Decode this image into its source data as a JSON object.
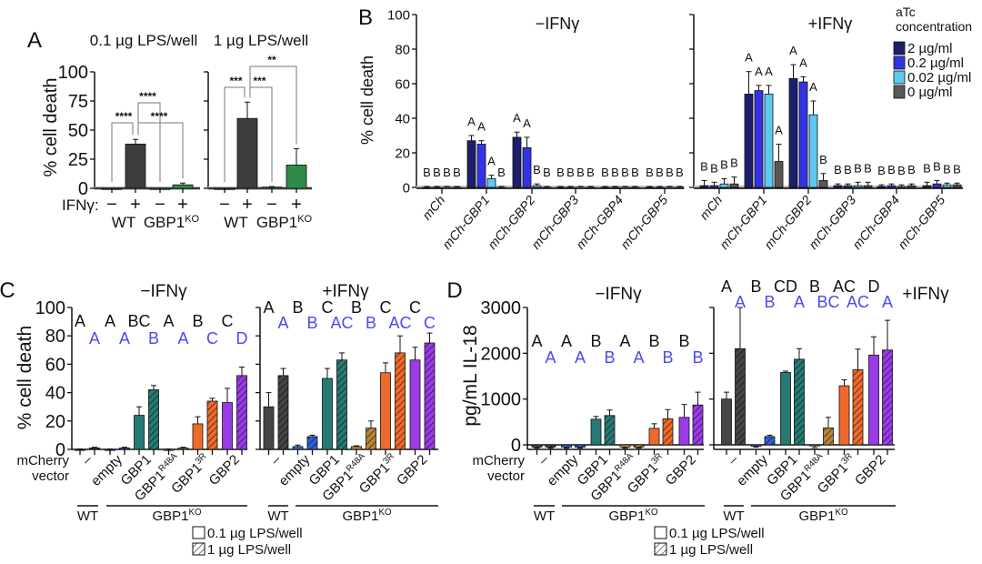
{
  "chart_data": [
    {
      "panel": "A",
      "type": "bar",
      "ylabel": "% cell death",
      "ylim": [
        0,
        100
      ],
      "yticks": [
        0,
        25,
        50,
        75,
        100
      ],
      "row_label": "IFNγ:",
      "subplots": [
        {
          "title": "0.1 µg LPS/well",
          "ifng": [
            "−",
            "+",
            "−",
            "+"
          ],
          "genotypes": [
            {
              "label": "WT",
              "sup": ""
            },
            {
              "label": "GBP1",
              "sup": "KO"
            }
          ],
          "values": [
            0,
            38,
            0,
            3
          ],
          "errors": [
            0,
            4,
            0,
            1.5
          ],
          "colors": [
            "#3d3d3d",
            "#3d3d3d",
            "#2e8b4a",
            "#2e8b4a"
          ],
          "significance": [
            {
              "from": 0,
              "to": 1,
              "label": "****"
            },
            {
              "from": 1,
              "to": 2,
              "label": "****"
            },
            {
              "from": 1,
              "to": 3,
              "label": "****"
            }
          ]
        },
        {
          "title": "1 µg LPS/well",
          "ifng": [
            "−",
            "+",
            "−",
            "+"
          ],
          "genotypes": [
            {
              "label": "WT",
              "sup": ""
            },
            {
              "label": "GBP1",
              "sup": "KO"
            }
          ],
          "values": [
            0,
            60,
            1,
            20
          ],
          "errors": [
            0,
            14,
            0.5,
            14
          ],
          "colors": [
            "#3d3d3d",
            "#3d3d3d",
            "#2e8b4a",
            "#2e8b4a"
          ],
          "significance": [
            {
              "from": 0,
              "to": 1,
              "label": "***"
            },
            {
              "from": 1,
              "to": 2,
              "label": "***"
            },
            {
              "from": 1,
              "to": 3,
              "label": "**"
            }
          ]
        }
      ]
    },
    {
      "panel": "B",
      "type": "bar",
      "ylabel": "% cell death",
      "ylim": [
        0,
        100
      ],
      "yticks": [
        0,
        20,
        40,
        60,
        80,
        100
      ],
      "categories": [
        "mCh",
        "mCh-GBP1",
        "mCh-GBP2",
        "mCh-GBP3",
        "mCh-GBP4",
        "mCh-GBP5"
      ],
      "legend": {
        "title": [
          "aTc",
          "concentration"
        ],
        "items": [
          {
            "label": "2 µg/ml",
            "color": "#1c1f6b"
          },
          {
            "label": "0.2 µg/ml",
            "color": "#3333e6"
          },
          {
            "label": "0.02 µg/ml",
            "color": "#5cc9f0"
          },
          {
            "label": "0 µg/ml",
            "color": "#585858"
          }
        ],
        "position": "top-right"
      },
      "subplots": [
        {
          "title": "−IFNγ",
          "values": [
            [
              0,
              0,
              0,
              0
            ],
            [
              27,
              25,
              5,
              0
            ],
            [
              29,
              23,
              1,
              0
            ],
            [
              0,
              0,
              0,
              0
            ],
            [
              0,
              0,
              0,
              0
            ],
            [
              0,
              0,
              0,
              0
            ]
          ],
          "errors": [
            [
              0.5,
              0.5,
              0.5,
              0.5
            ],
            [
              3,
              2,
              2,
              0.5
            ],
            [
              3,
              6,
              1,
              0.5
            ],
            [
              0.5,
              0.5,
              0.5,
              0.5
            ],
            [
              0.5,
              0.5,
              0.5,
              0.5
            ],
            [
              0.5,
              0.5,
              0.5,
              0.5
            ]
          ],
          "letters": [
            [
              "B",
              "B",
              "B",
              "B"
            ],
            [
              "A",
              "A",
              "A",
              "B"
            ],
            [
              "A",
              "A",
              "B",
              "B"
            ],
            [
              "B",
              "B",
              "B",
              "B"
            ],
            [
              "B",
              "B",
              "B",
              "B"
            ],
            [
              "B",
              "B",
              "B",
              "B"
            ]
          ]
        },
        {
          "title": "+IFNγ",
          "values": [
            [
              1,
              1,
              2,
              2
            ],
            [
              54,
              56,
              54,
              15
            ],
            [
              63,
              61,
              42,
              4
            ],
            [
              1,
              1,
              1,
              1
            ],
            [
              0.5,
              1,
              0.5,
              1
            ],
            [
              1,
              2,
              1.5,
              1.5
            ]
          ],
          "errors": [
            [
              3,
              2,
              3,
              4
            ],
            [
              13,
              3,
              5,
              10
            ],
            [
              8,
              3,
              8,
              4
            ],
            [
              1,
              1,
              2,
              2
            ],
            [
              1,
              1,
              1,
              1
            ],
            [
              2,
              2,
              1,
              1
            ]
          ],
          "letters": [
            [
              "B",
              "B",
              "B",
              "B"
            ],
            [
              "A",
              "A",
              "A",
              "A"
            ],
            [
              "A",
              "A",
              "A",
              "B"
            ],
            [
              "B",
              "B",
              "B",
              "B"
            ],
            [
              "B",
              "B",
              "B",
              "B"
            ],
            [
              "B",
              "B",
              "B",
              "B"
            ]
          ]
        }
      ]
    },
    {
      "panel": "C",
      "type": "bar",
      "ylabel": "% cell death",
      "ylim": [
        0,
        100
      ],
      "yticks": [
        0,
        20,
        40,
        60,
        80,
        100
      ],
      "xaxis_label": [
        "mCherry",
        "vector"
      ],
      "categories": [
        {
          "label": "–",
          "sup": ""
        },
        {
          "label": "empty",
          "sup": ""
        },
        {
          "label": "GBP1",
          "sup": ""
        },
        {
          "label": "GBP1",
          "sup": "R48A"
        },
        {
          "label": "GBP1",
          "sup": "3R"
        },
        {
          "label": "GBP2",
          "sup": ""
        }
      ],
      "colors": [
        "#454545",
        "#2f5fd6",
        "#267a73",
        "#b8863a",
        "#ee6a2c",
        "#9b3be8"
      ],
      "genotype_groups": [
        {
          "label": "WT",
          "sup": ""
        },
        {
          "label": "GBP1",
          "sup": "KO"
        }
      ],
      "letter_colors": [
        "#111111",
        "#4a4af0"
      ],
      "legend": [
        {
          "label": "0.1 µg LPS/well",
          "pattern": "solid"
        },
        {
          "label": "1 µg LPS/well",
          "pattern": "hatched"
        }
      ],
      "subplots": [
        {
          "title": "−IFNγ",
          "series": [
            {
              "name": "0.1 µg LPS/well",
              "values": [
                0,
                0,
                24,
                0,
                18,
                33
              ],
              "errors": [
                0.3,
                0.3,
                6,
                0.3,
                5,
                10
              ],
              "letters": [
                "A",
                "A",
                "BC",
                "A",
                "B",
                "C"
              ]
            },
            {
              "name": "1 µg LPS/well",
              "values": [
                1,
                1,
                42,
                1,
                34,
                52
              ],
              "errors": [
                0.5,
                0.5,
                3,
                0.5,
                2,
                6
              ],
              "letters": [
                "A",
                "A",
                "B",
                "A",
                "C",
                "D"
              ]
            }
          ]
        },
        {
          "title": "+IFNγ",
          "series": [
            {
              "name": "0.1 µg LPS/well",
              "values": [
                30,
                2,
                50,
                2,
                54,
                63
              ],
              "errors": [
                10,
                1,
                7,
                0.5,
                7,
                9
              ],
              "letters": [
                "A",
                "B",
                "C",
                "B",
                "C",
                "C"
              ]
            },
            {
              "name": "1 µg LPS/well",
              "values": [
                52,
                9,
                63,
                15,
                68,
                75
              ],
              "errors": [
                5,
                1,
                5,
                5,
                12,
                7
              ],
              "letters": [
                "A",
                "B",
                "AC",
                "B",
                "AC",
                "C"
              ]
            }
          ]
        }
      ]
    },
    {
      "panel": "D",
      "type": "bar",
      "ylabel": "pg/mL IL-18",
      "ylim": [
        -100,
        3000
      ],
      "yticks": [
        0,
        1000,
        2000,
        3000
      ],
      "xaxis_label": [
        "mCherry",
        "vector"
      ],
      "categories": [
        {
          "label": "–",
          "sup": ""
        },
        {
          "label": "empty",
          "sup": ""
        },
        {
          "label": "GBP1",
          "sup": ""
        },
        {
          "label": "GBP1",
          "sup": "R48A"
        },
        {
          "label": "GBP1",
          "sup": "3R"
        },
        {
          "label": "GBP2",
          "sup": ""
        }
      ],
      "colors": [
        "#454545",
        "#2f5fd6",
        "#267a73",
        "#b8863a",
        "#ee6a2c",
        "#9b3be8"
      ],
      "genotype_groups": [
        {
          "label": "WT",
          "sup": ""
        },
        {
          "label": "GBP1",
          "sup": "KO"
        }
      ],
      "letter_colors": [
        "#111111",
        "#4a4af0"
      ],
      "legend": [
        {
          "label": "0.1 µg LPS/well",
          "pattern": "solid"
        },
        {
          "label": "1 µg LPS/well",
          "pattern": "hatched"
        }
      ],
      "subplots": [
        {
          "title": "−IFNγ",
          "series": [
            {
              "name": "0.1 µg LPS/well",
              "values": [
                -50,
                -50,
                560,
                -50,
                360,
                600
              ],
              "errors": [
                20,
                20,
                60,
                20,
                100,
                280
              ],
              "letters": [
                "A",
                "A",
                "B",
                "A",
                "B",
                "B"
              ]
            },
            {
              "name": "1 µg LPS/well",
              "values": [
                -50,
                -50,
                640,
                -50,
                570,
                870
              ],
              "errors": [
                20,
                20,
                120,
                20,
                200,
                280
              ],
              "letters": [
                "A",
                "A",
                "B",
                "A",
                "B",
                "B"
              ]
            }
          ]
        },
        {
          "title": "+IFNγ",
          "series": [
            {
              "name": "0.1 µg LPS/well",
              "values": [
                1000,
                -30,
                1580,
                -20,
                1290,
                1960
              ],
              "errors": [
                150,
                20,
                30,
                40,
                130,
                400
              ],
              "letters": [
                "A",
                "B",
                "CD",
                "B",
                "AC",
                "D"
              ]
            },
            {
              "name": "1 µg LPS/well",
              "values": [
                2100,
                180,
                1870,
                370,
                1640,
                2070
              ],
              "errors": [
                900,
                30,
                230,
                230,
                450,
                650
              ],
              "letters": [
                "A",
                "B",
                "A",
                "BC",
                "AC",
                "A"
              ]
            }
          ]
        }
      ]
    }
  ]
}
